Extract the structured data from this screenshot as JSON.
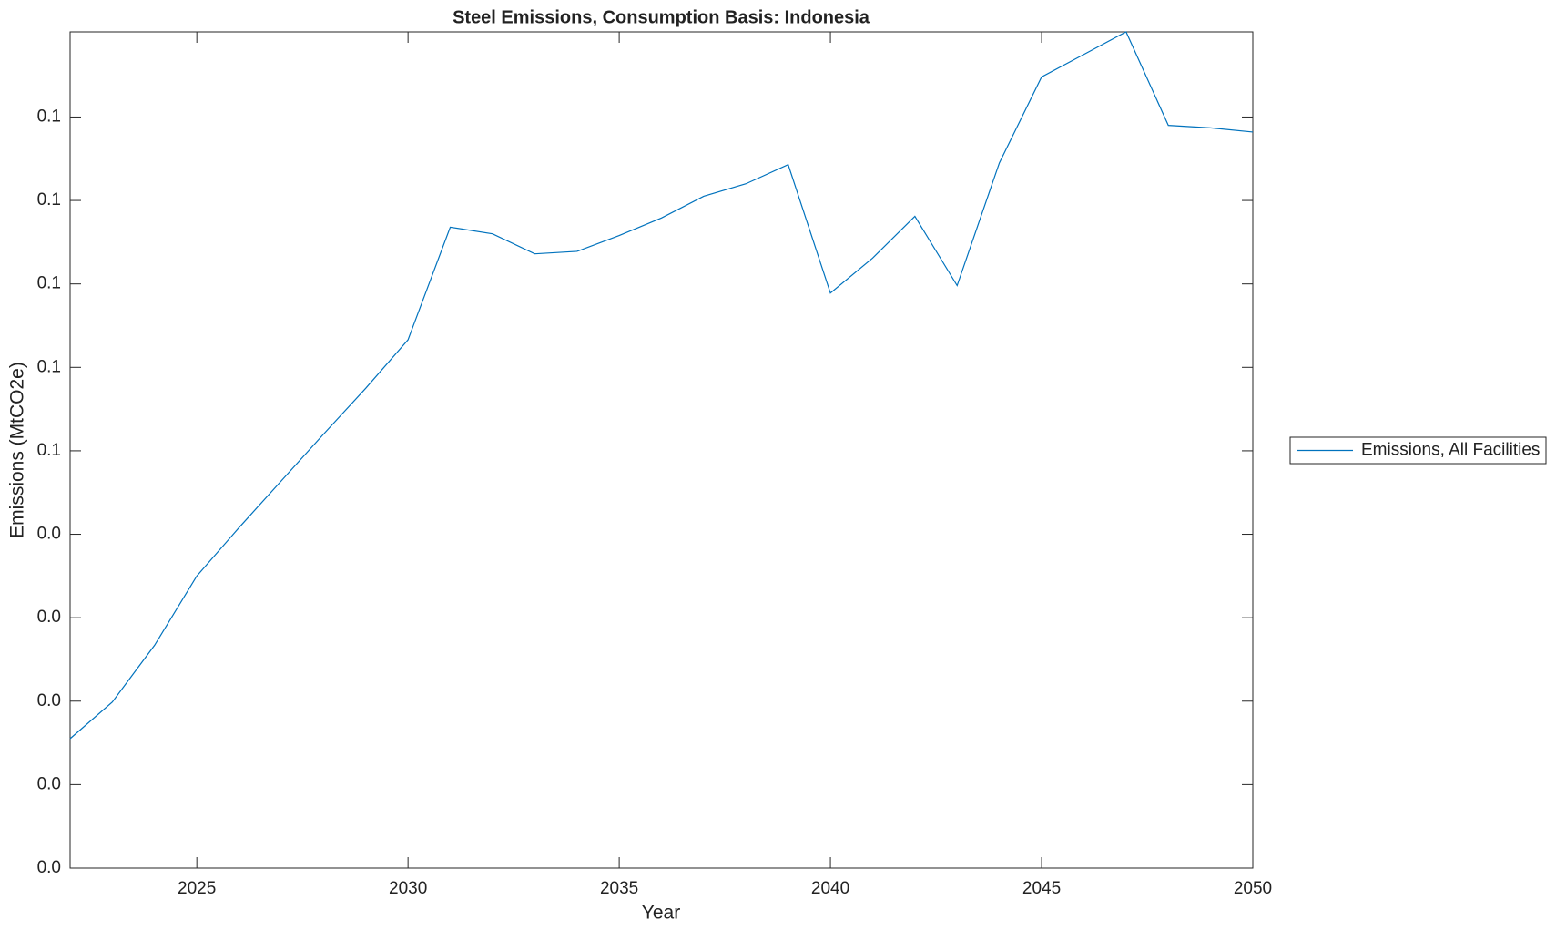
{
  "chart_data": {
    "type": "line",
    "title": "Steel Emissions, Consumption Basis: Indonesia",
    "x_label": "Year",
    "y_label": "Emissions (MtCO2e)",
    "x": [
      2022,
      2023,
      2024,
      2025,
      2026,
      2027,
      2028,
      2029,
      2030,
      2031,
      2032,
      2033,
      2034,
      2035,
      2036,
      2037,
      2038,
      2039,
      2040,
      2041,
      2042,
      2043,
      2044,
      2045,
      2046,
      2047,
      2048,
      2049,
      2050
    ],
    "series": [
      {
        "name": "Emissions, All Facilities",
        "color": "#0072bd",
        "values": [
          0.0155,
          0.0199,
          0.0267,
          0.035,
          0.0408,
          0.0464,
          0.052,
          0.0575,
          0.0633,
          0.0768,
          0.076,
          0.0736,
          0.0739,
          0.0758,
          0.0779,
          0.0805,
          0.082,
          0.0843,
          0.0689,
          0.0731,
          0.0781,
          0.0698,
          0.0845,
          0.0948,
          0.0975,
          0.1002,
          0.089,
          0.0887,
          0.0882
        ]
      }
    ],
    "xlim": [
      2022,
      2050
    ],
    "xticks": [
      2025,
      2030,
      2035,
      2040,
      2045,
      2050
    ],
    "ylim": [
      0,
      0.1002
    ],
    "yticks": [
      {
        "value": 0,
        "label": "0.0"
      },
      {
        "value": 0.01,
        "label": "0.0"
      },
      {
        "value": 0.02,
        "label": "0.0"
      },
      {
        "value": 0.03,
        "label": "0.0"
      },
      {
        "value": 0.04,
        "label": "0.0"
      },
      {
        "value": 0.05,
        "label": "0.1"
      },
      {
        "value": 0.06,
        "label": "0.1"
      },
      {
        "value": 0.07,
        "label": "0.1"
      },
      {
        "value": 0.08,
        "label": "0.1"
      },
      {
        "value": 0.09,
        "label": "0.1"
      }
    ],
    "grid": false,
    "legend": "outside-right"
  }
}
